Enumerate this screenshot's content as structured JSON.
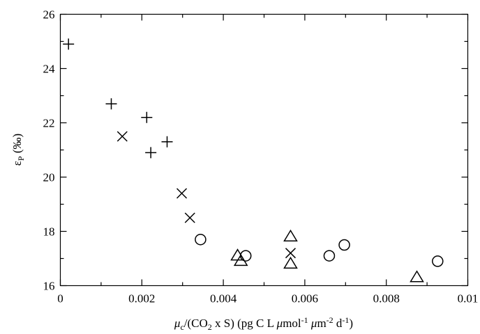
{
  "chart_data": {
    "type": "scatter",
    "x_label": {
      "mu": "μ",
      "mu_sub": "c",
      "after_mu": "/(CO",
      "co2_sub": "2",
      "rest1": " x S) (pg C L ",
      "unit_mu1": "μ",
      "mol": "mol",
      "exp1": "-1",
      "space": " ",
      "unit_mu2": "μ",
      "m": "m",
      "exp2": "-2",
      "d": " d",
      "exp3": "-1",
      "close": ")"
    },
    "y_label": {
      "epsilon": "ε",
      "sub": "P",
      "unit": " (‰)"
    },
    "xlim": [
      0,
      0.01
    ],
    "ylim": [
      16,
      26
    ],
    "x_ticks": [
      0,
      0.002,
      0.004,
      0.006,
      0.008,
      0.01
    ],
    "x_tick_labels": [
      "0",
      "0.002",
      "0.004",
      "0.006",
      "0.008",
      "0.01"
    ],
    "y_ticks": [
      16,
      18,
      20,
      22,
      24,
      26
    ],
    "y_tick_labels": [
      "16",
      "18",
      "20",
      "22",
      "24",
      "26"
    ],
    "grid": false,
    "legend": "none",
    "series": [
      {
        "marker": "plus",
        "points": [
          [
            0.0002,
            24.9
          ],
          [
            0.00125,
            22.7
          ],
          [
            0.00212,
            22.2
          ],
          [
            0.00222,
            20.9
          ],
          [
            0.00262,
            21.3
          ]
        ]
      },
      {
        "marker": "cross",
        "points": [
          [
            0.00152,
            21.5
          ],
          [
            0.00298,
            19.4
          ],
          [
            0.00318,
            18.5
          ],
          [
            0.00565,
            17.2
          ]
        ]
      },
      {
        "marker": "circle",
        "points": [
          [
            0.00344,
            17.7
          ],
          [
            0.00455,
            17.1
          ],
          [
            0.0066,
            17.1
          ],
          [
            0.00697,
            17.5
          ],
          [
            0.00926,
            16.9
          ]
        ]
      },
      {
        "marker": "triangle",
        "points": [
          [
            0.00435,
            17.1
          ],
          [
            0.00443,
            16.9
          ],
          [
            0.00565,
            17.8
          ],
          [
            0.00565,
            16.8
          ],
          [
            0.00875,
            16.3
          ]
        ]
      }
    ]
  }
}
